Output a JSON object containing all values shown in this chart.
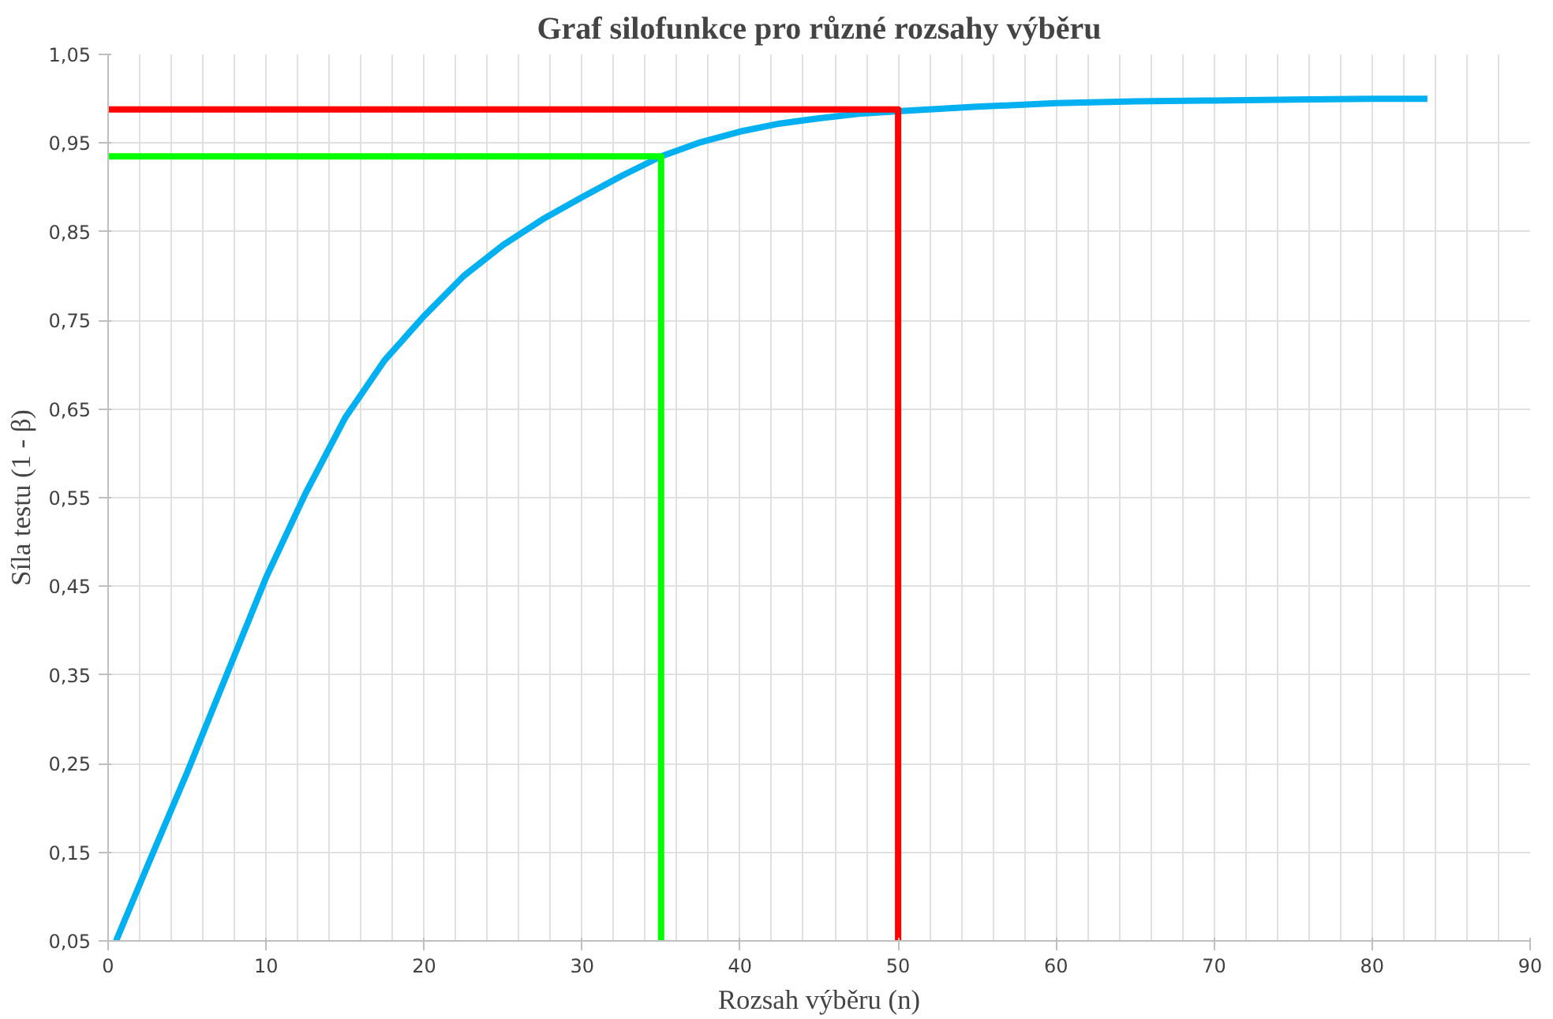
{
  "chart_data": {
    "type": "line",
    "title": "Graf silofunkce pro různé rozsahy výběru",
    "xlabel": "Rozsah výběru (n)",
    "ylabel": "Síla testu (1 - β)",
    "series": [
      {
        "color": "#00b0f0",
        "x": [
          0.5,
          2.5,
          5,
          7.5,
          10,
          12.5,
          15,
          17.5,
          20,
          22.5,
          25,
          27.5,
          30,
          32.5,
          35,
          37.5,
          40,
          42.5,
          45,
          47.5,
          50,
          55,
          60,
          65,
          70,
          75,
          80,
          83.5
        ],
        "values": [
          0.05,
          0.135,
          0.24,
          0.35,
          0.46,
          0.555,
          0.64,
          0.705,
          0.755,
          0.8,
          0.835,
          0.864,
          0.889,
          0.913,
          0.935,
          0.951,
          0.963,
          0.972,
          0.978,
          0.983,
          0.986,
          0.991,
          0.995,
          0.997,
          0.998,
          0.999,
          1.0,
          1.0
        ]
      },
      {
        "color": "#00ff00",
        "x": [
          0,
          35,
          35
        ],
        "values": [
          0.935,
          0.935,
          0.05
        ]
      },
      {
        "color": "#ff0000",
        "x": [
          0,
          50,
          50
        ],
        "values": [
          0.988,
          0.988,
          0.05
        ]
      }
    ],
    "xlim": [
      0,
      90
    ],
    "xticks": [
      0,
      10,
      20,
      30,
      40,
      50,
      60,
      70,
      80,
      90
    ],
    "ylim": [
      0.05,
      1.05
    ],
    "yticks": [
      {
        "value": 0.05,
        "label": "0,05"
      },
      {
        "value": 0.15,
        "label": "0,15"
      },
      {
        "value": 0.25,
        "label": "0,25"
      },
      {
        "value": 0.35,
        "label": "0,35"
      },
      {
        "value": 0.45,
        "label": "0,45"
      },
      {
        "value": 0.55,
        "label": "0,55"
      },
      {
        "value": 0.65,
        "label": "0,65"
      },
      {
        "value": 0.75,
        "label": "0,75"
      },
      {
        "value": 0.85,
        "label": "0,85"
      },
      {
        "value": 0.95,
        "label": "0,95"
      },
      {
        "value": 1.05,
        "label": "1,05"
      }
    ],
    "grid": true,
    "marker": "none",
    "line_style": "solid"
  }
}
